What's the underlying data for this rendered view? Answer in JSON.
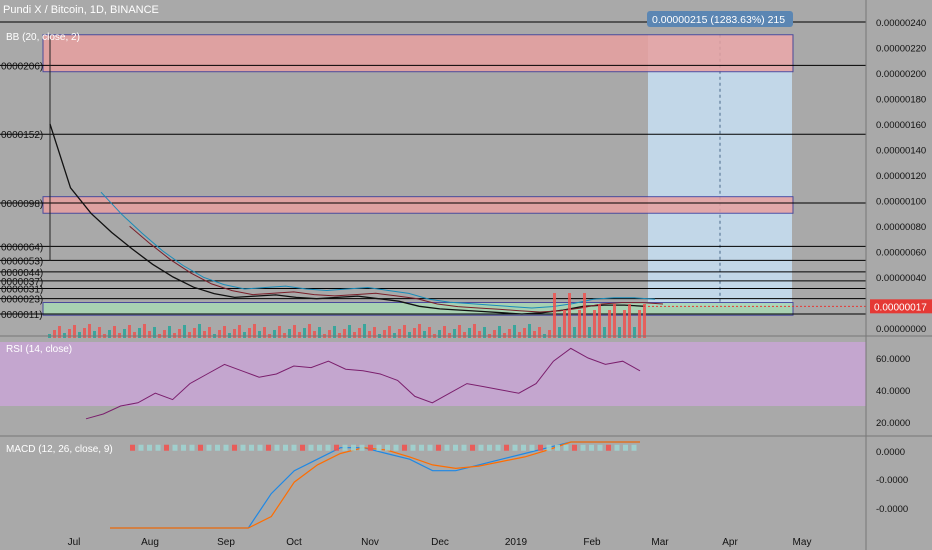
{
  "header": {
    "symbol_line": "Pundi X / Bitcoin, 1D, BINANCE",
    "bb_label": "BB (20, close, 2)",
    "rsi_label": "RSI (14, close)",
    "macd_label": "MACD (12, 26, close, 9)"
  },
  "measure_label": "0.00000215 (1283.63%) 215",
  "last_price_label": "0.00000017",
  "colors": {
    "background": "#a9a9a9",
    "up": "#26a69a",
    "down": "#ef5350",
    "sr_line": "#000000",
    "zone_red": "#e8a0a0",
    "zone_green": "#a8d8b4",
    "projection": "#c4dbee",
    "rsi_band": "#c9a6d6",
    "rsi_line": "#7b1f6d",
    "macd_line": "#1e88e5",
    "signal_line": "#ff6d00",
    "bb_line": "#1a8bb8",
    "ma_line": "#7a1f2a"
  },
  "chart_data": [
    {
      "type": "line",
      "name": "price",
      "x_axis": [
        "Jul",
        "Aug",
        "Sep",
        "Oct",
        "Nov",
        "Dec",
        "2019",
        "Feb",
        "Mar",
        "Apr",
        "May"
      ],
      "y_axis_ticks": [
        "0.00000240",
        "0.00000220",
        "0.00000200",
        "0.00000180",
        "0.00000160",
        "0.00000140",
        "0.00000120",
        "0.00000100",
        "0.00000080",
        "0.00000060",
        "0.00000040",
        "0.00000020",
        "0.00000000"
      ],
      "ylim": [
        0,
        2.4e-06
      ],
      "level_labels": [
        "0000206)",
        "0000152)",
        "0000098)",
        "0000064)",
        "0000053)",
        "0000044)",
        "0000037)",
        "0000031)",
        "0000023)",
        "0000011)"
      ],
      "levels": [
        2.06e-06,
        1.52e-06,
        9.8e-07,
        6.4e-07,
        5.3e-07,
        4.4e-07,
        3.7e-07,
        3.1e-07,
        2.3e-07,
        1.1e-07
      ],
      "zones": [
        {
          "color": "red",
          "from": 2.01e-06,
          "to": 2.3e-06
        },
        {
          "color": "red",
          "from": 9e-07,
          "to": 1.03e-06
        },
        {
          "color": "green",
          "from": 1e-07,
          "to": 2e-07
        }
      ],
      "close_series": [
        1.6e-06,
        1.1e-06,
        9e-07,
        7.5e-07,
        6.2e-07,
        5e-07,
        4e-07,
        3.2e-07,
        2.7e-07,
        2.4e-07,
        2.5e-07,
        2.6e-07,
        2.4e-07,
        2.3e-07,
        2.4e-07,
        2.5e-07,
        2.3e-07,
        2.1e-07,
        1.7e-07,
        1.5e-07,
        1.4e-07,
        1.3e-07,
        1.2e-07,
        1.1e-07,
        1.2e-07,
        1.4e-07,
        1.7e-07,
        1.8e-07,
        1.8e-07,
        1.7e-07
      ],
      "last_price": 1.7e-07
    },
    {
      "type": "line",
      "name": "RSI",
      "ylim": [
        15,
        70
      ],
      "y_axis_ticks": [
        "60.0000",
        "40.0000",
        "20.0000"
      ],
      "band": [
        30,
        70
      ],
      "values": [
        22,
        25,
        30,
        32,
        38,
        34,
        44,
        50,
        56,
        52,
        48,
        50,
        55,
        54,
        58,
        53,
        52,
        50,
        46,
        36,
        32,
        38,
        44,
        42,
        40,
        38,
        44,
        58,
        66,
        60,
        56,
        58,
        52
      ]
    },
    {
      "type": "line",
      "name": "MACD",
      "ylim": [
        -7e-08,
        5e-09
      ],
      "y_axis_ticks": [
        "0.0000",
        "-0.0000",
        "-0.0000"
      ],
      "macd": [
        -6.8e-07,
        -5.5e-07,
        -4.2e-07,
        -3e-07,
        -2e-07,
        -1.2e-07,
        -7e-08,
        -4e-08,
        -2e-08,
        -1e-08,
        0,
        0,
        -5e-09,
        -1e-08,
        -2e-08,
        -2e-08,
        -1.5e-08,
        -1e-08,
        -5e-09,
        0,
        1e-08,
        1.5e-08,
        1e-08,
        5e-09
      ],
      "signal": [
        -7.2e-07,
        -6e-07,
        -4.8e-07,
        -3.6e-07,
        -2.6e-07,
        -1.7e-07,
        -1.1e-07,
        -6e-08,
        -3e-08,
        -1.5e-08,
        -5e-09,
        0,
        -2e-09,
        -8e-09,
        -1.5e-08,
        -1.8e-08,
        -1.6e-08,
        -1.2e-08,
        -8e-09,
        -2e-09,
        6e-09,
        1.2e-08,
        1e-08,
        7e-09
      ]
    }
  ]
}
